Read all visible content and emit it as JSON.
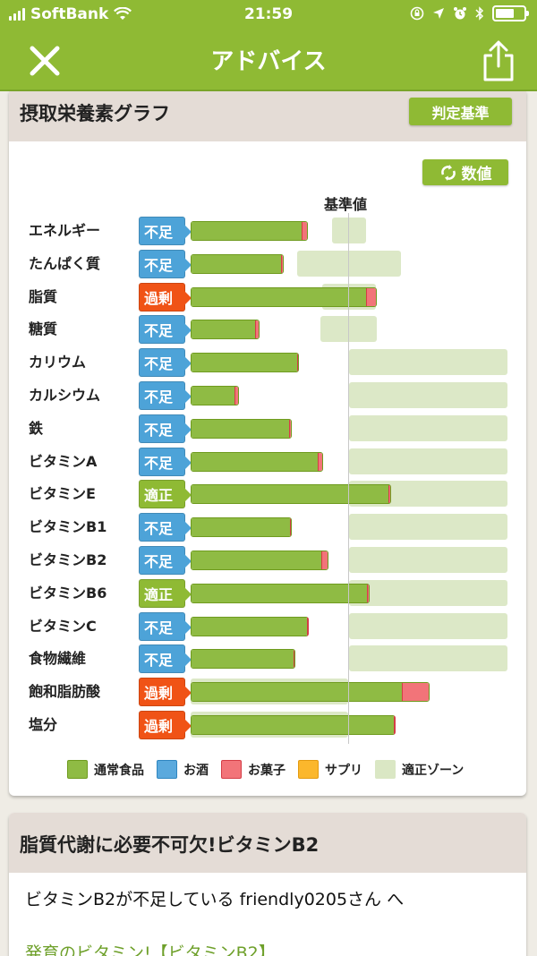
{
  "status_bar": {
    "carrier": "SoftBank",
    "time": "21:59",
    "icons": [
      "signal-icon",
      "wifi-icon",
      "orientation-lock-icon",
      "location-icon",
      "alarm-icon",
      "bluetooth-icon",
      "battery-icon"
    ]
  },
  "nav": {
    "title": "アドバイス",
    "close_icon": "close-icon",
    "share_icon": "share-icon"
  },
  "graph_card": {
    "title": "摂取栄養素グラフ",
    "criteria_button": "判定基準",
    "values_button": "数値",
    "values_icon": "refresh-icon",
    "baseline_label": "基準値"
  },
  "colors": {
    "brand_green": "#8fba34",
    "short_blue": "#4da3d8",
    "over_red": "#f05316",
    "food_green": "#8fbb44",
    "alcohol_blue": "#5aa9dd",
    "snack_red": "#f27479",
    "supplement_orange": "#fbb72c",
    "zone_green": "#dae7c4"
  },
  "chart_data": {
    "type": "bar",
    "orientation": "horizontal",
    "stacked": true,
    "title": "摂取栄養素グラフ",
    "reference_line_label": "基準値",
    "reference_value": 100,
    "units": "% of 基準値 (estimated from pixel positions)",
    "categories": [
      "エネルギー",
      "たんぱく質",
      "脂質",
      "糖質",
      "カリウム",
      "カルシウム",
      "鉄",
      "ビタミンA",
      "ビタミンE",
      "ビタミンB1",
      "ビタミンB2",
      "ビタミンB6",
      "ビタミンC",
      "食物繊維",
      "飽和脂肪酸",
      "塩分"
    ],
    "status": [
      "不足",
      "不足",
      "過剰",
      "不足",
      "不足",
      "不足",
      "不足",
      "不足",
      "適正",
      "不足",
      "不足",
      "適正",
      "不足",
      "不足",
      "過剰",
      "過剰"
    ],
    "series": [
      {
        "name": "通常食品",
        "values": [
          71,
          58,
          112,
          41,
          68,
          29,
          63,
          81,
          127,
          63,
          83,
          113,
          75,
          66,
          135,
          130
        ]
      },
      {
        "name": "お酒",
        "values": [
          0,
          0,
          0,
          0,
          0,
          0,
          0,
          0,
          0,
          0,
          0,
          0,
          0,
          0,
          0,
          0
        ]
      },
      {
        "name": "お菓子",
        "values": [
          3,
          1,
          6,
          2,
          1,
          2,
          1,
          3,
          1,
          1,
          4,
          1,
          0,
          1,
          17,
          0
        ]
      },
      {
        "name": "サプリ",
        "values": [
          0,
          0,
          0,
          0,
          0,
          0,
          0,
          0,
          0,
          0,
          0,
          0,
          0,
          0,
          0,
          0
        ]
      }
    ],
    "appropriate_zone": [
      [
        90,
        111
      ],
      [
        67,
        133
      ],
      [
        83,
        117
      ],
      [
        82,
        118
      ],
      [
        100,
        201
      ],
      [
        100,
        201
      ],
      [
        100,
        201
      ],
      [
        100,
        201
      ],
      [
        100,
        201
      ],
      [
        100,
        201
      ],
      [
        100,
        201
      ],
      [
        100,
        201
      ],
      [
        100,
        201
      ],
      [
        100,
        201
      ],
      [
        0,
        100
      ],
      [
        0,
        100
      ]
    ],
    "legend": [
      "通常食品",
      "お酒",
      "お菓子",
      "サプリ",
      "適正ゾーン"
    ],
    "legend_position": "bottom",
    "grid": false
  },
  "chart_rows": [
    {
      "label": "エネルギー",
      "status": "不足",
      "kind": "short",
      "zone": [
        371,
        409
      ],
      "food_end": 338,
      "snack_end": 344
    },
    {
      "label": "たんぱく質",
      "status": "不足",
      "kind": "short",
      "zone": [
        332,
        448
      ],
      "food_end": 315,
      "snack_end": 317
    },
    {
      "label": "脂質",
      "status": "過剰",
      "kind": "over",
      "zone": [
        360,
        420
      ],
      "food_end": 410,
      "snack_end": 421
    },
    {
      "label": "糖質",
      "status": "不足",
      "kind": "short",
      "zone": [
        358,
        421
      ],
      "food_end": 286,
      "snack_end": 290
    },
    {
      "label": "カリウム",
      "status": "不足",
      "kind": "short",
      "zone": [
        390,
        567
      ],
      "food_end": 333,
      "snack_end": 334
    },
    {
      "label": "カルシウム",
      "status": "不足",
      "kind": "short",
      "zone": [
        390,
        567
      ],
      "food_end": 263,
      "snack_end": 267
    },
    {
      "label": "鉄",
      "status": "不足",
      "kind": "short",
      "zone": [
        390,
        567
      ],
      "food_end": 324,
      "snack_end": 326
    },
    {
      "label": "ビタミンA",
      "status": "不足",
      "kind": "short",
      "zone": [
        390,
        567
      ],
      "food_end": 356,
      "snack_end": 361
    },
    {
      "label": "ビタミンE",
      "status": "適正",
      "kind": "ok",
      "zone": [
        390,
        567
      ],
      "food_end": 435,
      "snack_end": 437
    },
    {
      "label": "ビタミンB1",
      "status": "不足",
      "kind": "short",
      "zone": [
        390,
        567
      ],
      "food_end": 325,
      "snack_end": 326
    },
    {
      "label": "ビタミンB2",
      "status": "不足",
      "kind": "short",
      "zone": [
        390,
        567
      ],
      "food_end": 360,
      "snack_end": 367
    },
    {
      "label": "ビタミンB6",
      "status": "適正",
      "kind": "ok",
      "zone": [
        390,
        567
      ],
      "food_end": 411,
      "snack_end": 413
    },
    {
      "label": "ビタミンC",
      "status": "不足",
      "kind": "short",
      "zone": [
        390,
        567
      ],
      "food_end": 345,
      "snack_end": 345
    },
    {
      "label": "食物繊維",
      "status": "不足",
      "kind": "short",
      "zone": [
        390,
        567
      ],
      "food_end": 329,
      "snack_end": 330
    },
    {
      "label": "飽和脂肪酸",
      "status": "過剰",
      "kind": "over",
      "zone": [
        213,
        389
      ],
      "food_end": 450,
      "snack_end": 480
    },
    {
      "label": "塩分",
      "status": "過剰",
      "kind": "over",
      "zone": [
        213,
        389
      ],
      "food_end": 442,
      "snack_end": 442
    }
  ],
  "legend": [
    {
      "label": "通常食品",
      "color": "#8fbb44",
      "border": "#6f9b1f"
    },
    {
      "label": "お酒",
      "color": "#5aa9dd",
      "border": "#2f86c0"
    },
    {
      "label": "お菓子",
      "color": "#f27479",
      "border": "#d43d46"
    },
    {
      "label": "サプリ",
      "color": "#fbb72c",
      "border": "#e39a10"
    },
    {
      "label": "適正ゾーン",
      "color": "#dae7c4",
      "border": "#dae7c4"
    }
  ],
  "advice_card": {
    "title": "脂質代謝に必要不可欠!ビタミンB2",
    "subtitle": "ビタミンB2が不足している friendly0205さん へ",
    "link": "発育のビタミン!【ビタミンB2】"
  }
}
